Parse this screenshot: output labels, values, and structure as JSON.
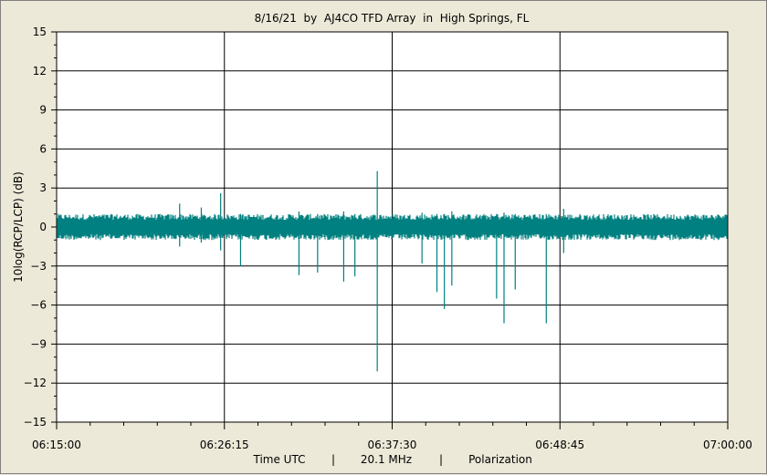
{
  "chart_data": {
    "type": "line",
    "title": "8/16/21  by  AJ4CO TFD Array  in  High Springs, FL",
    "ylabel": "10log(RCP/LCP) (dB)",
    "xlabel_parts": [
      "Time UTC",
      "|",
      "20.1 MHz",
      "|",
      "Polarization"
    ],
    "ylim": [
      -15,
      15
    ],
    "yticks": [
      15,
      12,
      9,
      6,
      3,
      0,
      -3,
      -6,
      -9,
      -12,
      -15
    ],
    "xlim": [
      "06:15:00",
      "07:00:00"
    ],
    "xticks": [
      "06:15:00",
      "06:26:15",
      "06:37:30",
      "06:48:45",
      "07:00:00"
    ],
    "grid": true,
    "series": [
      {
        "color": "#008080",
        "noise_band_db": [
          -1.0,
          1.0
        ],
        "spikes": [
          {
            "t": "06:23:15",
            "min_db": -1.5,
            "max_db": 1.8
          },
          {
            "t": "06:24:42",
            "min_db": -1.2,
            "max_db": 1.5
          },
          {
            "t": "06:26:00",
            "min_db": -1.8,
            "max_db": 2.6
          },
          {
            "t": "06:27:20",
            "min_db": -3.0,
            "max_db": 1.0
          },
          {
            "t": "06:31:15",
            "min_db": -3.7,
            "max_db": 1.2
          },
          {
            "t": "06:32:30",
            "min_db": -3.5,
            "max_db": 1.0
          },
          {
            "t": "06:34:15",
            "min_db": -4.2,
            "max_db": 1.2
          },
          {
            "t": "06:35:00",
            "min_db": -3.8,
            "max_db": 1.0
          },
          {
            "t": "06:36:30",
            "min_db": -11.1,
            "max_db": 4.3
          },
          {
            "t": "06:39:30",
            "min_db": -2.8,
            "max_db": 1.1
          },
          {
            "t": "06:40:30",
            "min_db": -5.0,
            "max_db": 1.0
          },
          {
            "t": "06:41:00",
            "min_db": -6.3,
            "max_db": 1.0
          },
          {
            "t": "06:41:30",
            "min_db": -4.5,
            "max_db": 1.2
          },
          {
            "t": "06:44:30",
            "min_db": -5.5,
            "max_db": 1.0
          },
          {
            "t": "06:45:00",
            "min_db": -7.4,
            "max_db": 1.1
          },
          {
            "t": "06:45:45",
            "min_db": -4.8,
            "max_db": 1.0
          },
          {
            "t": "06:47:50",
            "min_db": -7.4,
            "max_db": 1.0
          },
          {
            "t": "06:49:00",
            "min_db": -2.0,
            "max_db": 1.4
          }
        ]
      }
    ]
  }
}
